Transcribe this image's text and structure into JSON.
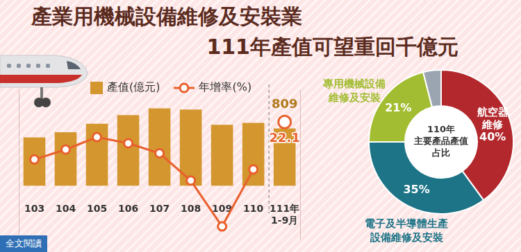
{
  "page": {
    "title": "產業用機械設備維修及安裝業",
    "subtitle": "111年產值可望重回千億元",
    "button": "全文閱讀"
  },
  "chart_data": [
    {
      "type": "bar",
      "categories": [
        "103",
        "104",
        "105",
        "106",
        "107",
        "108",
        "109",
        "110",
        "111年1-9月"
      ],
      "series": [
        {
          "name": "產值(億元)",
          "type": "bar",
          "color": "#d4962f",
          "values": [
            680,
            755,
            875,
            995,
            1090,
            1075,
            860,
            886,
            809
          ],
          "value_labels": [
            null,
            null,
            null,
            null,
            null,
            null,
            null,
            null,
            "809"
          ]
        },
        {
          "name": "年增率(%)",
          "type": "line",
          "axis": "y2",
          "color": "#e8602c",
          "marker": "circle",
          "values": [
            7.0,
            11.0,
            16.0,
            13.5,
            9.5,
            -1.5,
            -20.0,
            3.0,
            22.1
          ],
          "value_labels": [
            null,
            null,
            null,
            null,
            null,
            null,
            null,
            null,
            "22.1"
          ]
        }
      ],
      "ylim": [
        -750,
        1350
      ],
      "y2lim": [
        -25,
        35
      ],
      "grid": false,
      "legend": "top",
      "tick_labels": "x"
    },
    {
      "type": "doughnut",
      "title": "110年主要產品產值占比",
      "categories": [
        "航空器維修",
        "電子及半導體生產設備維修及安裝",
        "專用機械設備維修及安裝",
        null
      ],
      "values": [
        40,
        35,
        21,
        4
      ],
      "value_labels": [
        "40%",
        "35%",
        "21%",
        null
      ],
      "colors": [
        "#b3282d",
        "#1d7487",
        "#a3bd32",
        "#9aa5b1"
      ]
    }
  ]
}
